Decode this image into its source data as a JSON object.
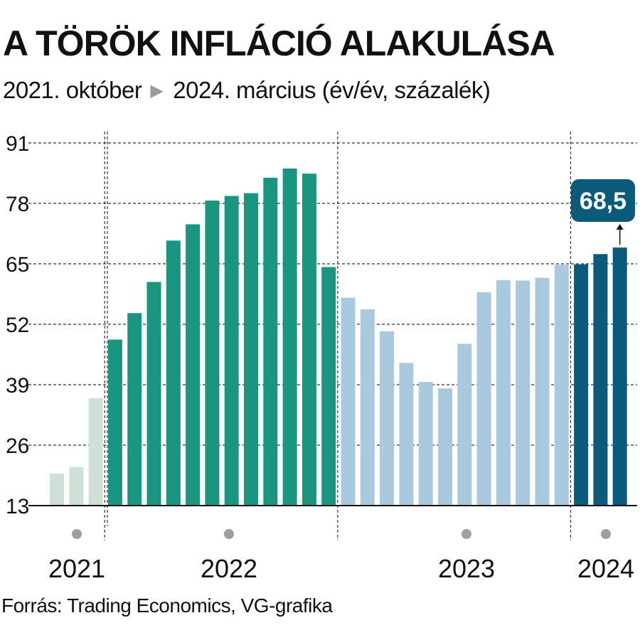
{
  "title": "A TÖRÖK INFLÁCIÓ ALAKULÁSA",
  "subtitle": {
    "start": "2021. október",
    "end": "2024. március (év/év, százalék)"
  },
  "source": "Forrás: Trading Economics, VG-grafika",
  "colors": {
    "y2021": "#cfe0d9",
    "y2022": "#1a9580",
    "y2023": "#a9c9de",
    "y2024": "#0b5a7c",
    "callout": "#0b5a7c",
    "grid": "#333333",
    "marker": "#9e9e9e"
  },
  "chart_data": {
    "type": "bar",
    "title": "A TÖRÖK INFLÁCIÓ ALAKULÁSA",
    "ylabel": "",
    "xlabel": "",
    "ylim": [
      13,
      91
    ],
    "yticks": [
      13,
      26,
      39,
      52,
      65,
      78,
      91
    ],
    "grid": true,
    "categories": [
      "2021-10",
      "2021-11",
      "2021-12",
      "2022-01",
      "2022-02",
      "2022-03",
      "2022-04",
      "2022-05",
      "2022-06",
      "2022-07",
      "2022-08",
      "2022-09",
      "2022-10",
      "2022-11",
      "2022-12",
      "2023-01",
      "2023-02",
      "2023-03",
      "2023-04",
      "2023-05",
      "2023-06",
      "2023-07",
      "2023-08",
      "2023-09",
      "2023-10",
      "2023-11",
      "2023-12",
      "2024-01",
      "2024-02",
      "2024-03"
    ],
    "values": [
      19.9,
      21.3,
      36.1,
      48.7,
      54.4,
      61.1,
      70.0,
      73.5,
      78.6,
      79.6,
      80.2,
      83.5,
      85.5,
      84.4,
      64.3,
      57.7,
      55.2,
      50.5,
      43.7,
      39.6,
      38.2,
      47.8,
      58.9,
      61.5,
      61.4,
      62.0,
      64.8,
      64.9,
      67.1,
      68.5
    ],
    "groups": [
      {
        "year": "2021",
        "from": 0,
        "to": 2
      },
      {
        "year": "2022",
        "from": 3,
        "to": 14
      },
      {
        "year": "2023",
        "from": 15,
        "to": 26
      },
      {
        "year": "2024",
        "from": 27,
        "to": 29
      }
    ],
    "year_labels": [
      "2021",
      "2022",
      "2023",
      "2024"
    ],
    "callout": {
      "index": 29,
      "label": "68,5"
    }
  }
}
